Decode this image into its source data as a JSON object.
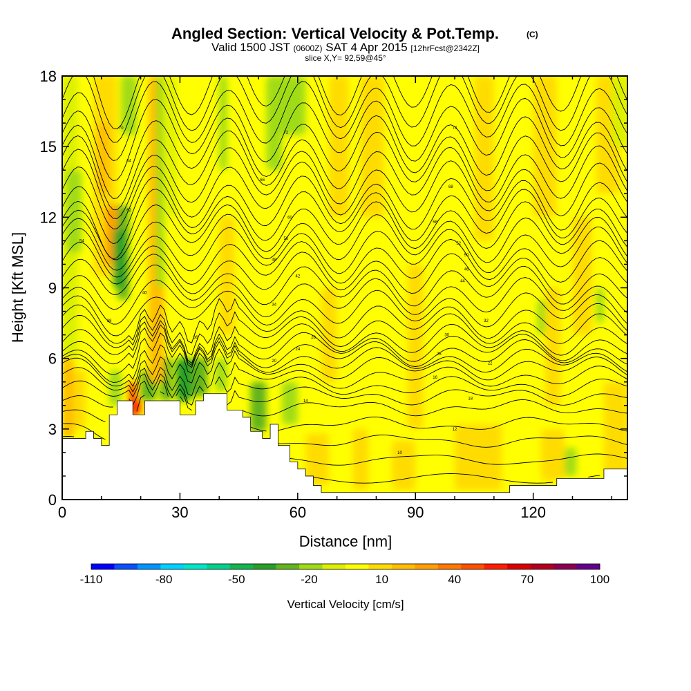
{
  "title": {
    "main": "Angled Section: Vertical Velocity & Pot.Temp.",
    "main_sup": "(C)",
    "line2_a": "Valid 1500 JST",
    "line2_b": "(0600Z)",
    "line2_c": "SAT 4 Apr 2015",
    "line2_d": "[12hrFcst@2342Z]",
    "line3": "slice X,Y= 92,59@45°"
  },
  "chart_data": {
    "type": "heatmap",
    "xlabel": "Distance [nm]",
    "ylabel": "Height [Kft MSL]",
    "xlim": [
      0,
      144
    ],
    "ylim": [
      0,
      18
    ],
    "x_ticks": [
      "0",
      "30",
      "60",
      "90",
      "120"
    ],
    "y_ticks": [
      "0",
      "3",
      "6",
      "9",
      "12",
      "15",
      "18"
    ],
    "x_tick_values": [
      0,
      30,
      60,
      90,
      120
    ],
    "y_tick_values": [
      0,
      3,
      6,
      9,
      12,
      15,
      18
    ],
    "colorbar": {
      "label": "Vertical Velocity [cm/s]",
      "tick_labels": [
        "-110",
        "-80",
        "-50",
        "-20",
        "10",
        "40",
        "70",
        "100"
      ],
      "levels": [
        -110,
        -100,
        -90,
        -80,
        -70,
        -60,
        -50,
        -40,
        -30,
        -20,
        -10,
        0,
        10,
        20,
        30,
        40,
        50,
        60,
        70,
        80,
        90,
        100
      ],
      "colors": [
        "#0000ff",
        "#0a50ff",
        "#0096ff",
        "#00d2ff",
        "#00e6c8",
        "#00d28c",
        "#14b450",
        "#28a028",
        "#64b41e",
        "#a0dc14",
        "#dcf000",
        "#ffff00",
        "#ffdc00",
        "#ffbe00",
        "#ffa000",
        "#ff7800",
        "#ff5000",
        "#ff1e00",
        "#dc0000",
        "#b4001e",
        "#8c0050",
        "#64008c"
      ]
    },
    "background_field": "mostly 0 to 10 cm/s; updraft bands 10-30 near x=10-20; downdraft -10 to -40 near x=10-20 aloft and x=20-40 below 6 kft",
    "terrain_profile": {
      "x": [
        0,
        6,
        6,
        8,
        8,
        10,
        10,
        12,
        12,
        14,
        14,
        18,
        18,
        21,
        21,
        25,
        25,
        30,
        30,
        34,
        34,
        36,
        36,
        38,
        38,
        42,
        42,
        46,
        46,
        48,
        48,
        51,
        51,
        53,
        53,
        55,
        55,
        58,
        58,
        60,
        60,
        62,
        62,
        64,
        64,
        66,
        66,
        68,
        68,
        114,
        114,
        126,
        126,
        138,
        138,
        144
      ],
      "y": [
        2.6,
        2.6,
        2.9,
        2.9,
        2.6,
        2.6,
        2.3,
        2.3,
        3.6,
        3.6,
        4.2,
        4.2,
        3.6,
        3.6,
        4.2,
        4.2,
        4.2,
        4.2,
        3.6,
        3.6,
        4.2,
        4.2,
        4.5,
        4.5,
        4.5,
        4.5,
        3.8,
        3.8,
        3.5,
        3.5,
        2.9,
        2.9,
        2.6,
        2.6,
        3.2,
        3.2,
        2.3,
        2.3,
        1.6,
        1.6,
        1.3,
        1.3,
        1.0,
        1.0,
        0.6,
        0.6,
        0.3,
        0.3,
        0.3,
        0.3,
        0.6,
        0.6,
        0.9,
        0.9,
        1.3,
        1.3
      ]
    },
    "isentrope_heights": [
      0.9,
      1.7,
      2.5,
      3.2,
      3.9,
      4.4,
      4.8,
      5.2,
      5.6,
      5.9,
      6.2,
      6.5,
      6.8,
      7.2,
      7.6,
      8.1,
      8.6,
      9.1,
      9.6,
      10.1,
      10.6,
      11.1,
      11.6,
      12.1,
      12.6,
      13.2,
      13.8,
      14.4,
      15.0,
      15.7,
      16.4,
      17.1,
      17.8
    ],
    "contour_labels": [
      {
        "text": "10",
        "x": 86,
        "y": 2.0
      },
      {
        "text": "12",
        "x": 100,
        "y": 3.0
      },
      {
        "text": "14",
        "x": 62,
        "y": 4.2
      },
      {
        "text": "16",
        "x": 95,
        "y": 5.2
      },
      {
        "text": "18",
        "x": 104,
        "y": 4.3
      },
      {
        "text": "20",
        "x": 54,
        "y": 5.9
      },
      {
        "text": "22",
        "x": 109,
        "y": 5.8
      },
      {
        "text": "24",
        "x": 60,
        "y": 6.4
      },
      {
        "text": "26",
        "x": 96,
        "y": 6.2
      },
      {
        "text": "28",
        "x": 64,
        "y": 6.9
      },
      {
        "text": "30",
        "x": 98,
        "y": 7.0
      },
      {
        "text": "32",
        "x": 108,
        "y": 7.6
      },
      {
        "text": "34",
        "x": 54,
        "y": 8.3
      },
      {
        "text": "36",
        "x": 34,
        "y": 6.9
      },
      {
        "text": "38",
        "x": 12,
        "y": 7.6
      },
      {
        "text": "40",
        "x": 21,
        "y": 8.8
      },
      {
        "text": "42",
        "x": 60,
        "y": 9.5
      },
      {
        "text": "44",
        "x": 102,
        "y": 9.3
      },
      {
        "text": "46",
        "x": 103,
        "y": 9.8
      },
      {
        "text": "48",
        "x": 54,
        "y": 10.2
      },
      {
        "text": "50",
        "x": 103,
        "y": 10.4
      },
      {
        "text": "52",
        "x": 101,
        "y": 10.9
      },
      {
        "text": "54",
        "x": 5,
        "y": 11.0
      },
      {
        "text": "56",
        "x": 57,
        "y": 11.1
      },
      {
        "text": "58",
        "x": 95,
        "y": 11.8
      },
      {
        "text": "60",
        "x": 58,
        "y": 12.0
      },
      {
        "text": "62",
        "x": 17,
        "y": 12.3
      },
      {
        "text": "64",
        "x": 17,
        "y": 14.4
      },
      {
        "text": "66",
        "x": 51,
        "y": 13.6
      },
      {
        "text": "68",
        "x": 99,
        "y": 13.3
      },
      {
        "text": "70",
        "x": 15,
        "y": 15.8
      },
      {
        "text": "72",
        "x": 57,
        "y": 15.6
      },
      {
        "text": "74",
        "x": 100,
        "y": 15.8
      }
    ]
  }
}
